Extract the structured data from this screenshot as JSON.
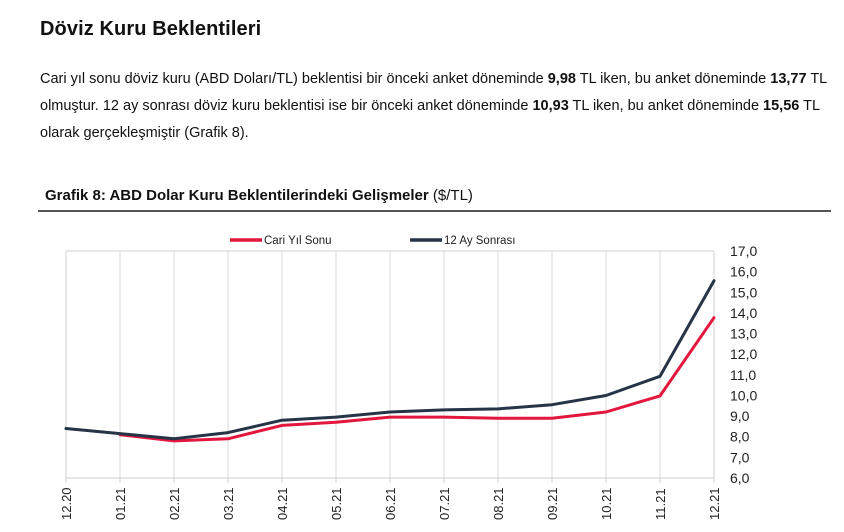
{
  "header": {
    "title": "Döviz Kuru Beklentileri"
  },
  "paragraph": {
    "p1": "Cari yıl sonu döviz kuru (ABD Doları/TL) beklentisi bir önceki anket döneminde ",
    "v1": "9,98",
    "p2": " TL iken, bu anket döneminde ",
    "v2": "13,77",
    "p3": " TL olmuştur. 12 ay sonrası döviz kuru beklentisi ise bir önceki anket döneminde ",
    "v3": "10,93",
    "p4": " TL iken, bu anket döneminde ",
    "v4": "15,56",
    "p5": " TL olarak gerçekleşmiştir (Grafik 8)."
  },
  "chart_caption": {
    "title": "Grafik 8: ABD Dolar Kuru Beklentilerindeki Gelişmeler",
    "unit": "($/TL)"
  },
  "chart_data": {
    "type": "line",
    "categories": [
      "12.20",
      "01.21",
      "02.21",
      "03.21",
      "04.21",
      "05.21",
      "06.21",
      "07.21",
      "08.21",
      "09.21",
      "10.21",
      "11.21",
      "12.21"
    ],
    "series": [
      {
        "name": "Cari Yıl Sonu",
        "color": "#e3173e",
        "values": [
          null,
          8.1,
          7.8,
          7.9,
          8.55,
          8.7,
          8.95,
          8.95,
          8.9,
          8.9,
          9.2,
          9.98,
          13.77
        ]
      },
      {
        "name": "12 Ay Sonrası",
        "color": "#253447",
        "values": [
          8.4,
          8.15,
          7.9,
          8.2,
          8.8,
          8.95,
          9.2,
          9.3,
          9.35,
          9.55,
          10.0,
          10.93,
          15.56
        ]
      }
    ],
    "yticks": [
      "6,0",
      "7,0",
      "8,0",
      "9,0",
      "10,0",
      "11,0",
      "12,0",
      "13,0",
      "14,0",
      "15,0",
      "16,0",
      "17,0"
    ],
    "ylim": [
      6,
      17
    ],
    "y_axis_side": "right",
    "grid": "vertical",
    "legend": "top-center"
  }
}
